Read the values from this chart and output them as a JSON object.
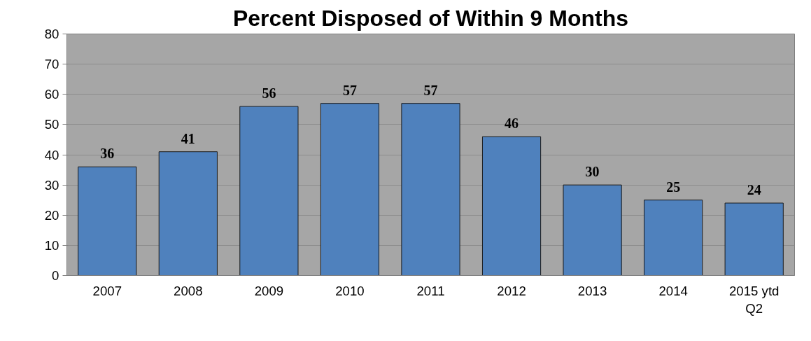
{
  "chart_data": {
    "type": "bar",
    "title": "Percent Disposed of Within 9 Months",
    "categories": [
      "2007",
      "2008",
      "2009",
      "2010",
      "2011",
      "2012",
      "2013",
      "2014",
      "2015 ytd Q2"
    ],
    "values": [
      36,
      41,
      56,
      57,
      57,
      46,
      30,
      25,
      24
    ],
    "color": "#4f81bd",
    "ylim": [
      0,
      80
    ],
    "yticks": [
      0,
      10,
      20,
      30,
      40,
      50,
      60,
      70,
      80
    ],
    "grid": "y",
    "data_labels": true
  }
}
